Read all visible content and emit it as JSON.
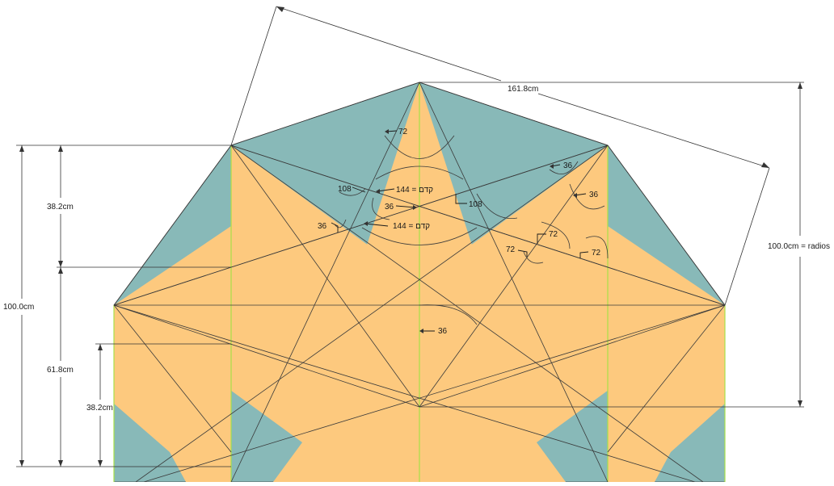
{
  "colors": {
    "background": "#ffffff",
    "star_fill": "#fdc97e",
    "corner_fill": "#88b9b8",
    "green_guide": "#a8e048",
    "line": "#3a3a3a",
    "dimension_line": "#333333"
  },
  "dimensions": {
    "top_diagonal": "161.8cm",
    "right_radius": "100.0cm = radios",
    "left_total": "100.0cm",
    "left_upper": "38.2cm",
    "left_lower": "61.8cm",
    "left_inner": "38.2cm"
  },
  "angles": {
    "a72_top": "72",
    "a108_left": "108",
    "a144_upper": "144 = קדם",
    "a36_center": "36",
    "a108_right": "108",
    "a36_left": "36",
    "a144_lower": "144 = קדם",
    "a36_right_top": "36",
    "a36_right_mid": "36",
    "a72_right_a": "72",
    "a72_right_b": "72",
    "a72_right_c": "72",
    "a36_axis": "36"
  }
}
